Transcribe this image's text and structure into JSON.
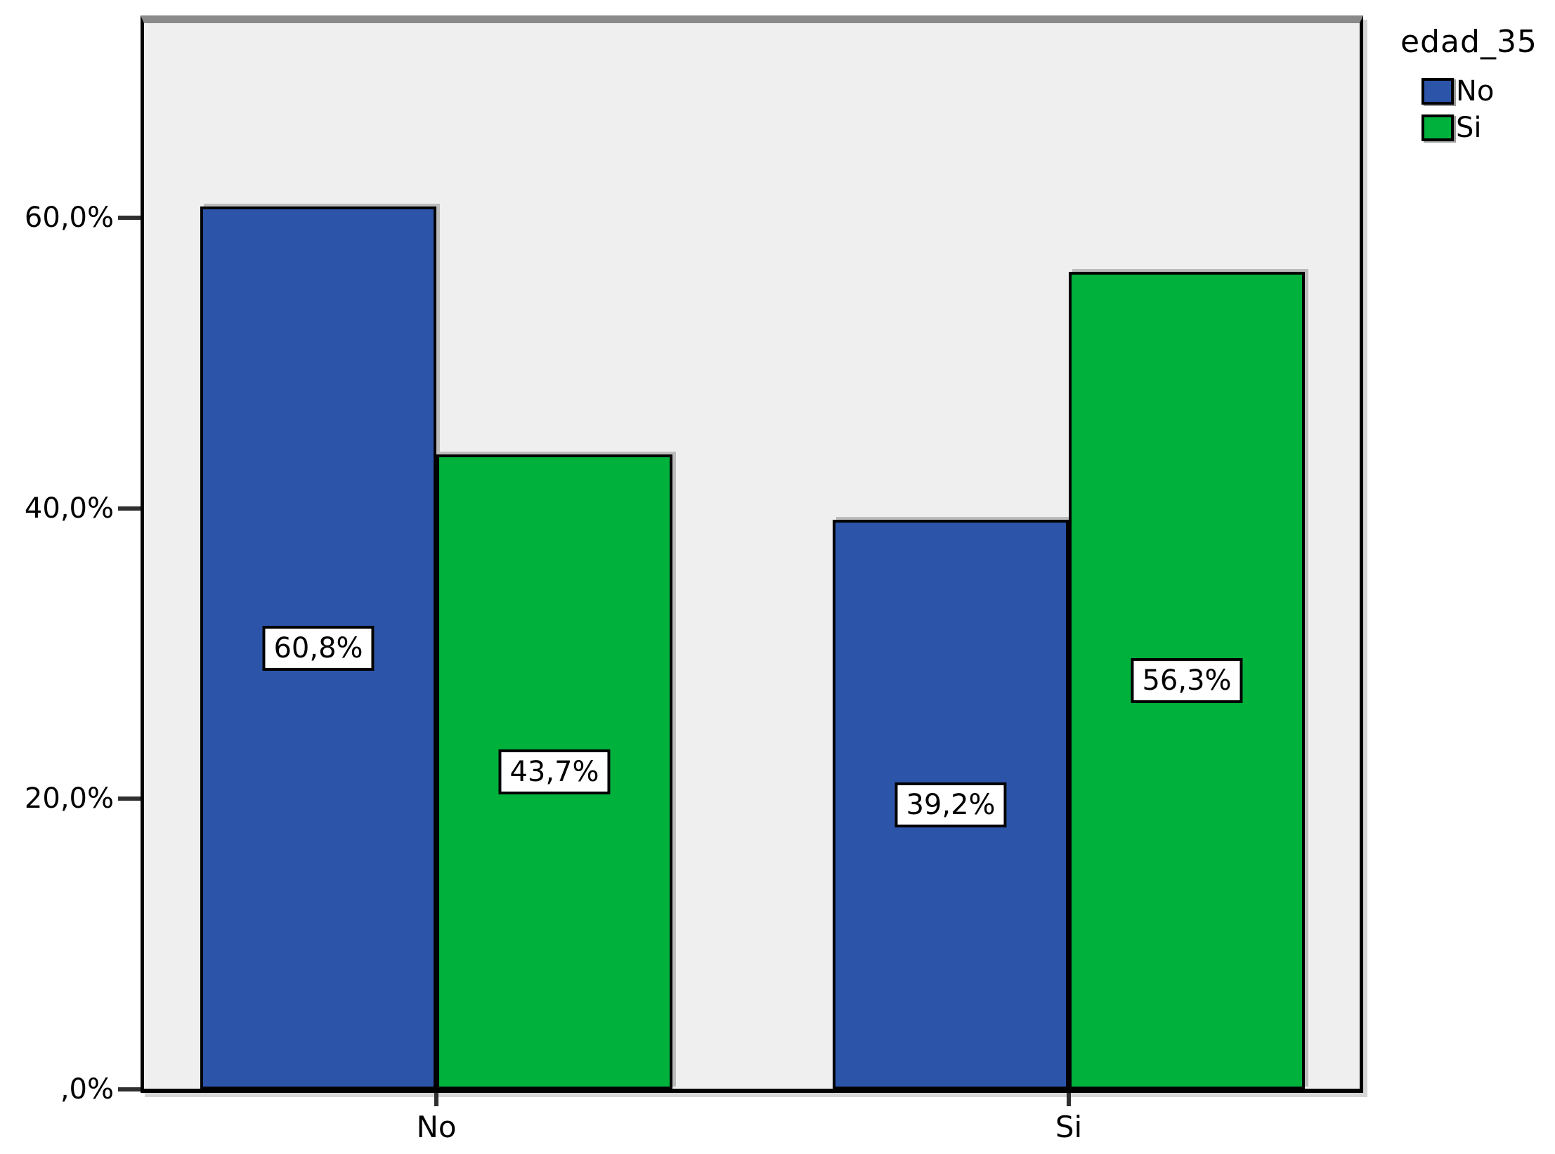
{
  "chart_data": {
    "type": "bar",
    "title": "",
    "xlabel": "",
    "ylabel": "",
    "categories": [
      "No",
      "Si"
    ],
    "series": [
      {
        "name": "No",
        "color": "#2C55A9",
        "values": [
          60.8,
          39.2
        ],
        "value_labels": [
          "60,8%",
          "39,2%"
        ]
      },
      {
        "name": "Si",
        "color": "#00B13C",
        "values": [
          43.7,
          56.3
        ],
        "value_labels": [
          "43,7%",
          "56,3%"
        ]
      }
    ],
    "y_ticks": [
      {
        "value": 0,
        "label": ",0%"
      },
      {
        "value": 20,
        "label": "20,0%"
      },
      {
        "value": 40,
        "label": "40,0%"
      },
      {
        "value": 60,
        "label": "60,0%"
      }
    ],
    "ylim": [
      0,
      73.4
    ],
    "grid": false,
    "plot_background": "#EFEFEF",
    "bar_border_color": "#000000",
    "legend": {
      "title": "edad_35",
      "position": "top-right",
      "entries": [
        {
          "label": "No",
          "color": "#2C55A9"
        },
        {
          "label": "Si",
          "color": "#00B13C"
        }
      ]
    }
  }
}
